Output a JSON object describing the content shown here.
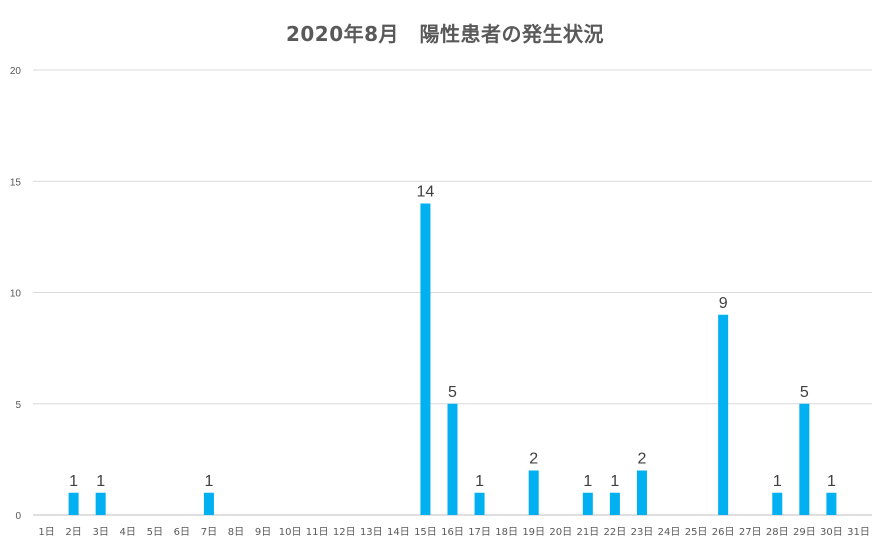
{
  "chart_data": {
    "type": "bar",
    "title": "2020年8月　陽性患者の発生状況",
    "categories": [
      "1日",
      "2日",
      "3日",
      "4日",
      "5日",
      "6日",
      "7日",
      "8日",
      "9日",
      "10日",
      "11日",
      "12日",
      "13日",
      "14日",
      "15日",
      "16日",
      "17日",
      "18日",
      "19日",
      "20日",
      "21日",
      "22日",
      "23日",
      "24日",
      "25日",
      "26日",
      "27日",
      "28日",
      "29日",
      "30日",
      "31日"
    ],
    "values": [
      0,
      1,
      1,
      0,
      0,
      0,
      1,
      0,
      0,
      0,
      0,
      0,
      0,
      0,
      14,
      5,
      1,
      0,
      2,
      0,
      1,
      1,
      2,
      0,
      0,
      9,
      0,
      1,
      5,
      1,
      0
    ],
    "ylim": [
      0,
      20
    ],
    "yticks": [
      0,
      5,
      10,
      15,
      20
    ],
    "grid": true,
    "data_labels": "non-zero values shown above bars",
    "bar_color": "#00B0F0"
  }
}
